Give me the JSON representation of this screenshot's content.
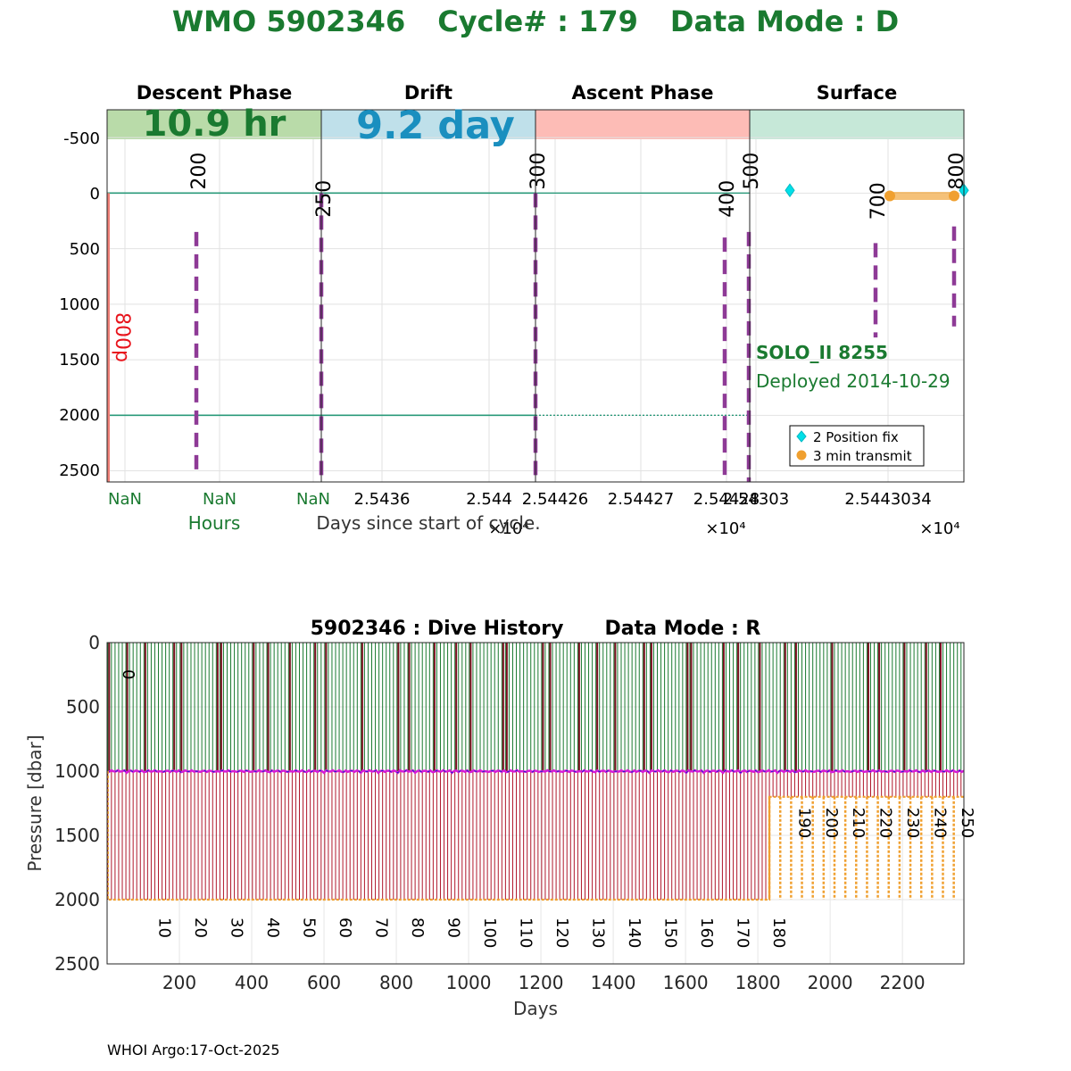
{
  "header": {
    "wmo": "WMO 5902346",
    "cycle": "Cycle# : 179",
    "data_mode": "Data Mode : D"
  },
  "float_info": {
    "model": "SOLO_II 8255",
    "deployed": "Deployed 2014-10-29"
  },
  "footer": {
    "credit": "WHOI Argo:17-Oct-2025"
  },
  "colors": {
    "title_green": "#1a7a30",
    "descent_band": "#b9dba9",
    "drift_band": "#bfe0ea",
    "ascent_band": "#fdbcb6",
    "surface_band": "#c6e8d8",
    "purple_dash": "#8e3a96",
    "teal_line": "#2a9a7a",
    "descent_red": "#f08078",
    "orange": "#f0a030",
    "cyan": "#00e0e8",
    "dive_green": "#1a7a30",
    "dive_red": "#b0182c"
  },
  "chart_data": [
    {
      "type": "line",
      "panels": [
        {
          "name": "Descent Phase",
          "duration": "10.9 hr"
        },
        {
          "name": "Drift",
          "duration": "9.2 day"
        },
        {
          "name": "Ascent Phase",
          "duration": ""
        },
        {
          "name": "Surface",
          "duration": ""
        }
      ],
      "y_ticks": [
        "-500",
        "0",
        "500",
        "1000",
        "1500",
        "2000",
        "2500"
      ],
      "ylim": [
        2600,
        -750
      ],
      "reversed_y": true,
      "grid": true,
      "x_labels": {
        "descent": [
          "NaN",
          "NaN",
          "NaN"
        ],
        "drift": [
          "2.5436",
          "2.544"
        ],
        "ascent": [
          "2.54426",
          "2.54427",
          "2.54428"
        ],
        "surface": [
          "2.54303",
          "2.5443034"
        ]
      },
      "x_exponents": [
        "×10⁴",
        "×10⁴",
        "×10⁴"
      ],
      "xlabel_hours": "Hours",
      "xlabel": "Days since start of cycle.",
      "descent_bar_label": "800p",
      "level_lines": [
        0,
        2000
      ],
      "sample_markers": [
        {
          "label": "200",
          "top": 350,
          "bottom": 2550
        },
        {
          "label": "250",
          "top": 0,
          "bottom": 2600
        },
        {
          "label": "300",
          "top": 0,
          "bottom": 2600
        },
        {
          "label": "400",
          "top": 400,
          "bottom": 2600
        },
        {
          "label": "500",
          "top": 350,
          "bottom": 2600
        },
        {
          "label": "700",
          "top": 450,
          "bottom": 1300
        },
        {
          "label": "800",
          "top": 300,
          "bottom": 1200
        }
      ],
      "legend": {
        "placement": "bottom-right",
        "entries": [
          {
            "label": "2 Position fix",
            "color": "#00e0e8",
            "marker": "diamond"
          },
          {
            "label": "3 min transmit",
            "color": "#f0a030",
            "marker": "circle"
          }
        ]
      }
    },
    {
      "type": "bar",
      "title": "5902346 : Dive History",
      "data_mode": "Data Mode : R",
      "xlabel": "Days",
      "ylabel": "Pressure [dbar]",
      "xlim": [
        0,
        2370
      ],
      "ylim": [
        2500,
        0
      ],
      "x_ticks": [
        200,
        400,
        600,
        800,
        1000,
        1200,
        1400,
        1600,
        1800,
        2000,
        2200
      ],
      "y_ticks": [
        0,
        500,
        1000,
        1500,
        2000,
        2500
      ],
      "cycle_count": 257,
      "cycle_interval_days": 10,
      "park_pressure": 1000,
      "profile_depth_early": 2000,
      "profile_depth_late": 1200,
      "switch_cycle": 183,
      "cycle_labels": [
        "0",
        "10",
        "20",
        "30",
        "40",
        "50",
        "60",
        "70",
        "80",
        "90",
        "100",
        "110",
        "120",
        "130",
        "140",
        "150",
        "160",
        "170",
        "180",
        "190",
        "200",
        "210",
        "220",
        "230",
        "240",
        "250"
      ],
      "cycle_label_days": [
        0,
        100,
        200,
        300,
        400,
        500,
        600,
        700,
        800,
        900,
        1000,
        1100,
        1200,
        1300,
        1400,
        1500,
        1600,
        1700,
        1800,
        1870,
        1945,
        2020,
        2095,
        2170,
        2245,
        2320
      ]
    }
  ]
}
